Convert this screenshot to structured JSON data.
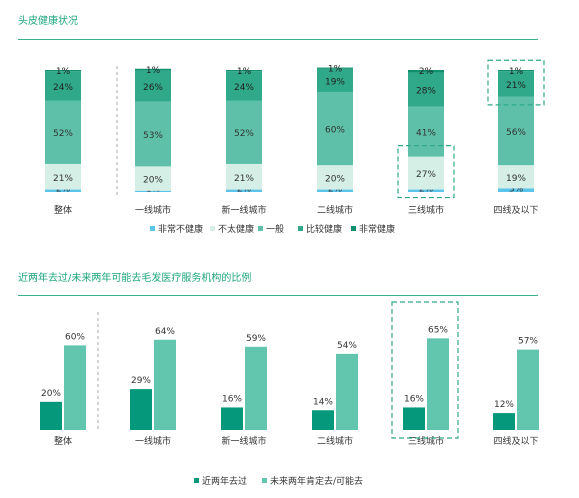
{
  "colors": {
    "title": "#1fa67f",
    "rule": "#37b28e",
    "very_unhealthy": "#5bc4ea",
    "not_healthy": "#d5eee6",
    "average": "#5ec0a8",
    "fairly_healthy": "#2fa989",
    "very_healthy": "#0f8f6e",
    "past_two_years": "#06987a",
    "future_two_years": "#62c6ae",
    "highlight_box": "#2fa989"
  },
  "chart_data": [
    {
      "type": "bar",
      "stacked": true,
      "title": "头皮健康状况",
      "categories": [
        "整体",
        "一线城市",
        "新一线城市",
        "二线城市",
        "三线城市",
        "四线及以下"
      ],
      "series": [
        {
          "name": "非常不健康",
          "values": [
            2,
            1,
            2,
            2,
            2,
            3
          ],
          "labels": [
            "2%",
            "1%",
            "2%",
            "2%",
            "2%",
            "3%"
          ]
        },
        {
          "name": "不太健康",
          "values": [
            21,
            20,
            21,
            20,
            27,
            19
          ],
          "labels": [
            "21%",
            "20%",
            "21%",
            "20%",
            "27%",
            "19%"
          ]
        },
        {
          "name": "一般",
          "values": [
            52,
            53,
            52,
            60,
            41,
            56
          ],
          "labels": [
            "52%",
            "53%",
            "52%",
            "60%",
            "41%",
            "56%"
          ]
        },
        {
          "name": "比较健康",
          "values": [
            24,
            26,
            24,
            19,
            28,
            21
          ],
          "labels": [
            "24%",
            "26%",
            "24%",
            "19%",
            "28%",
            "21%"
          ]
        },
        {
          "name": "非常健康",
          "values": [
            1,
            1,
            1,
            1,
            2,
            1
          ],
          "labels": [
            "1%",
            "1%",
            "1%",
            "1%",
            "2%",
            "1%"
          ]
        }
      ],
      "ylim": [
        0,
        100
      ],
      "legend_position": "bottom",
      "highlights": [
        {
          "category": "三线城市",
          "series": "不太健康"
        },
        {
          "category": "四线及以下",
          "series": "比较健康"
        }
      ]
    },
    {
      "type": "bar",
      "title": "近两年去过/未来两年可能去毛发医疗服务机构的比例",
      "categories": [
        "整体",
        "一线城市",
        "新一线城市",
        "二线城市",
        "三线城市",
        "四线及以下"
      ],
      "series": [
        {
          "name": "近两年去过",
          "values": [
            20,
            29,
            16,
            14,
            16,
            12
          ],
          "labels": [
            "20%",
            "29%",
            "16%",
            "14%",
            "16%",
            "12%"
          ]
        },
        {
          "name": "未来两年肯定去/可能去",
          "values": [
            60,
            64,
            59,
            54,
            65,
            57
          ],
          "labels": [
            "60%",
            "64%",
            "59%",
            "54%",
            "65%",
            "57%"
          ]
        }
      ],
      "ylim": [
        0,
        70
      ],
      "legend_position": "bottom",
      "highlights": [
        {
          "category": "三线城市",
          "series": "all"
        }
      ]
    }
  ]
}
